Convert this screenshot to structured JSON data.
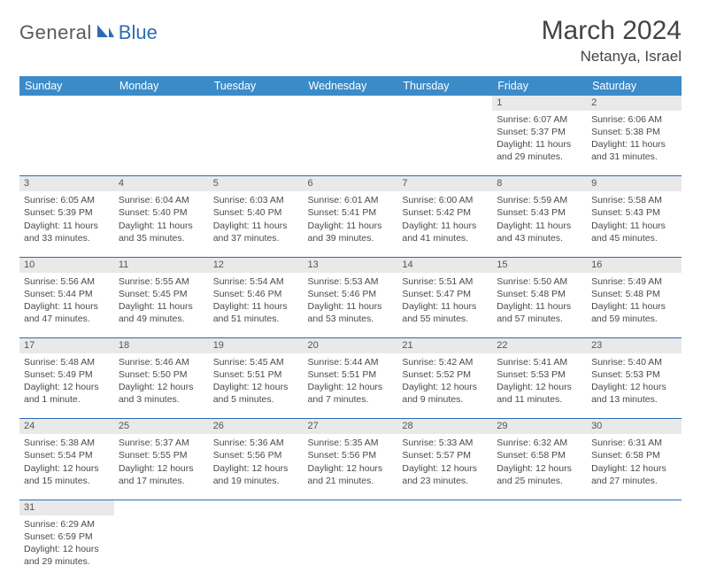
{
  "logo": {
    "general": "General",
    "blue": "Blue"
  },
  "header": {
    "title": "March 2024",
    "location": "Netanya, Israel"
  },
  "colors": {
    "header_bg": "#3b8bc9",
    "divider": "#2a6db5",
    "daynum_bg": "#e9e9e9",
    "logo_gray": "#5a5a5a",
    "logo_blue": "#2a6db5"
  },
  "weekdays": [
    "Sunday",
    "Monday",
    "Tuesday",
    "Wednesday",
    "Thursday",
    "Friday",
    "Saturday"
  ],
  "weeks": [
    {
      "nums": [
        "",
        "",
        "",
        "",
        "",
        "1",
        "2"
      ],
      "cells": [
        null,
        null,
        null,
        null,
        null,
        {
          "sunrise": "Sunrise: 6:07 AM",
          "sunset": "Sunset: 5:37 PM",
          "daylight": "Daylight: 11 hours and 29 minutes."
        },
        {
          "sunrise": "Sunrise: 6:06 AM",
          "sunset": "Sunset: 5:38 PM",
          "daylight": "Daylight: 11 hours and 31 minutes."
        }
      ]
    },
    {
      "nums": [
        "3",
        "4",
        "5",
        "6",
        "7",
        "8",
        "9"
      ],
      "cells": [
        {
          "sunrise": "Sunrise: 6:05 AM",
          "sunset": "Sunset: 5:39 PM",
          "daylight": "Daylight: 11 hours and 33 minutes."
        },
        {
          "sunrise": "Sunrise: 6:04 AM",
          "sunset": "Sunset: 5:40 PM",
          "daylight": "Daylight: 11 hours and 35 minutes."
        },
        {
          "sunrise": "Sunrise: 6:03 AM",
          "sunset": "Sunset: 5:40 PM",
          "daylight": "Daylight: 11 hours and 37 minutes."
        },
        {
          "sunrise": "Sunrise: 6:01 AM",
          "sunset": "Sunset: 5:41 PM",
          "daylight": "Daylight: 11 hours and 39 minutes."
        },
        {
          "sunrise": "Sunrise: 6:00 AM",
          "sunset": "Sunset: 5:42 PM",
          "daylight": "Daylight: 11 hours and 41 minutes."
        },
        {
          "sunrise": "Sunrise: 5:59 AM",
          "sunset": "Sunset: 5:43 PM",
          "daylight": "Daylight: 11 hours and 43 minutes."
        },
        {
          "sunrise": "Sunrise: 5:58 AM",
          "sunset": "Sunset: 5:43 PM",
          "daylight": "Daylight: 11 hours and 45 minutes."
        }
      ]
    },
    {
      "nums": [
        "10",
        "11",
        "12",
        "13",
        "14",
        "15",
        "16"
      ],
      "cells": [
        {
          "sunrise": "Sunrise: 5:56 AM",
          "sunset": "Sunset: 5:44 PM",
          "daylight": "Daylight: 11 hours and 47 minutes."
        },
        {
          "sunrise": "Sunrise: 5:55 AM",
          "sunset": "Sunset: 5:45 PM",
          "daylight": "Daylight: 11 hours and 49 minutes."
        },
        {
          "sunrise": "Sunrise: 5:54 AM",
          "sunset": "Sunset: 5:46 PM",
          "daylight": "Daylight: 11 hours and 51 minutes."
        },
        {
          "sunrise": "Sunrise: 5:53 AM",
          "sunset": "Sunset: 5:46 PM",
          "daylight": "Daylight: 11 hours and 53 minutes."
        },
        {
          "sunrise": "Sunrise: 5:51 AM",
          "sunset": "Sunset: 5:47 PM",
          "daylight": "Daylight: 11 hours and 55 minutes."
        },
        {
          "sunrise": "Sunrise: 5:50 AM",
          "sunset": "Sunset: 5:48 PM",
          "daylight": "Daylight: 11 hours and 57 minutes."
        },
        {
          "sunrise": "Sunrise: 5:49 AM",
          "sunset": "Sunset: 5:48 PM",
          "daylight": "Daylight: 11 hours and 59 minutes."
        }
      ]
    },
    {
      "nums": [
        "17",
        "18",
        "19",
        "20",
        "21",
        "22",
        "23"
      ],
      "cells": [
        {
          "sunrise": "Sunrise: 5:48 AM",
          "sunset": "Sunset: 5:49 PM",
          "daylight": "Daylight: 12 hours and 1 minute."
        },
        {
          "sunrise": "Sunrise: 5:46 AM",
          "sunset": "Sunset: 5:50 PM",
          "daylight": "Daylight: 12 hours and 3 minutes."
        },
        {
          "sunrise": "Sunrise: 5:45 AM",
          "sunset": "Sunset: 5:51 PM",
          "daylight": "Daylight: 12 hours and 5 minutes."
        },
        {
          "sunrise": "Sunrise: 5:44 AM",
          "sunset": "Sunset: 5:51 PM",
          "daylight": "Daylight: 12 hours and 7 minutes."
        },
        {
          "sunrise": "Sunrise: 5:42 AM",
          "sunset": "Sunset: 5:52 PM",
          "daylight": "Daylight: 12 hours and 9 minutes."
        },
        {
          "sunrise": "Sunrise: 5:41 AM",
          "sunset": "Sunset: 5:53 PM",
          "daylight": "Daylight: 12 hours and 11 minutes."
        },
        {
          "sunrise": "Sunrise: 5:40 AM",
          "sunset": "Sunset: 5:53 PM",
          "daylight": "Daylight: 12 hours and 13 minutes."
        }
      ]
    },
    {
      "nums": [
        "24",
        "25",
        "26",
        "27",
        "28",
        "29",
        "30"
      ],
      "cells": [
        {
          "sunrise": "Sunrise: 5:38 AM",
          "sunset": "Sunset: 5:54 PM",
          "daylight": "Daylight: 12 hours and 15 minutes."
        },
        {
          "sunrise": "Sunrise: 5:37 AM",
          "sunset": "Sunset: 5:55 PM",
          "daylight": "Daylight: 12 hours and 17 minutes."
        },
        {
          "sunrise": "Sunrise: 5:36 AM",
          "sunset": "Sunset: 5:56 PM",
          "daylight": "Daylight: 12 hours and 19 minutes."
        },
        {
          "sunrise": "Sunrise: 5:35 AM",
          "sunset": "Sunset: 5:56 PM",
          "daylight": "Daylight: 12 hours and 21 minutes."
        },
        {
          "sunrise": "Sunrise: 5:33 AM",
          "sunset": "Sunset: 5:57 PM",
          "daylight": "Daylight: 12 hours and 23 minutes."
        },
        {
          "sunrise": "Sunrise: 6:32 AM",
          "sunset": "Sunset: 6:58 PM",
          "daylight": "Daylight: 12 hours and 25 minutes."
        },
        {
          "sunrise": "Sunrise: 6:31 AM",
          "sunset": "Sunset: 6:58 PM",
          "daylight": "Daylight: 12 hours and 27 minutes."
        }
      ]
    },
    {
      "nums": [
        "31",
        "",
        "",
        "",
        "",
        "",
        ""
      ],
      "cells": [
        {
          "sunrise": "Sunrise: 6:29 AM",
          "sunset": "Sunset: 6:59 PM",
          "daylight": "Daylight: 12 hours and 29 minutes."
        },
        null,
        null,
        null,
        null,
        null,
        null
      ]
    }
  ]
}
